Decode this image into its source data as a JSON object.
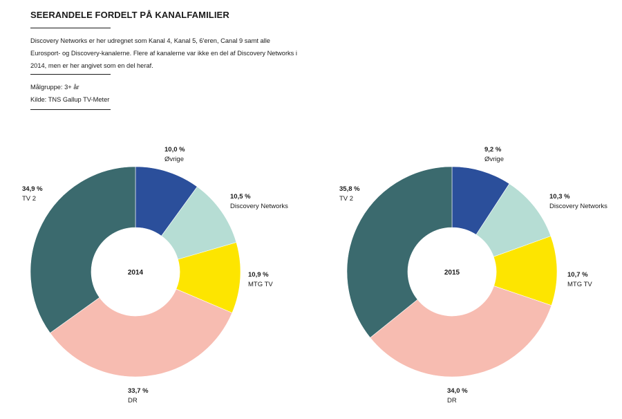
{
  "header": {
    "title": "SEERANDELE FORDELT PÅ KANALFAMILIER",
    "description": "Discovery Networks er her udregnet som Kanal 4, Kanal 5, 6'eren, Canal 9 samt alle Eurosport- og Discovery-kanalerne. Flere af kanalerne var ikke en del af Discovery Networks i 2014, men er her angivet som en del heraf.",
    "target_group": "Målgruppe: 3+ år",
    "source": "Kilde: TNS Gallup TV-Meter"
  },
  "colors": {
    "Øvrige": "#2b4f9b",
    "Discovery Networks": "#b6ddd4",
    "MTG TV": "#fde500",
    "DR": "#f7bcb1",
    "TV 2": "#3b6a6e"
  },
  "chart_data": [
    {
      "type": "pie",
      "donut": true,
      "title": "2014",
      "center_label": "2014",
      "categories": [
        "Øvrige",
        "Discovery Networks",
        "MTG TV",
        "DR",
        "TV 2"
      ],
      "values": [
        10.0,
        10.5,
        10.9,
        33.7,
        34.9
      ],
      "value_labels": [
        "10,0 %",
        "10,5 %",
        "10,9 %",
        "33,7 %",
        "34,9 %"
      ],
      "unit": "%"
    },
    {
      "type": "pie",
      "donut": true,
      "title": "2015",
      "center_label": "2015",
      "categories": [
        "Øvrige",
        "Discovery Networks",
        "MTG TV",
        "DR",
        "TV 2"
      ],
      "values": [
        9.2,
        10.3,
        10.7,
        34.0,
        35.8
      ],
      "value_labels": [
        "9,2 %",
        "10,3 %",
        "10,7 %",
        "34,0 %",
        "35,8 %"
      ],
      "unit": "%"
    }
  ]
}
